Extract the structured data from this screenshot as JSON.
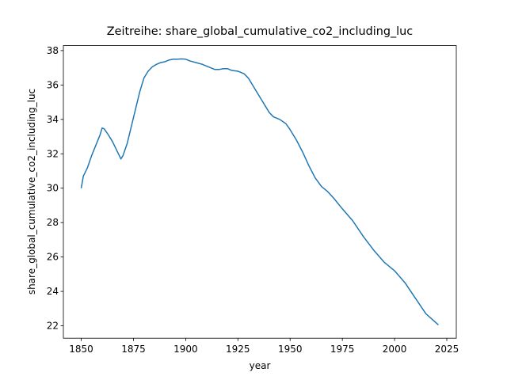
{
  "chart_data": {
    "type": "line",
    "title": "Zeitreihe: share_global_cumulative_co2_including_luc",
    "x_label": "year",
    "y_label": "share_global_cumulative_co2_including_luc",
    "x": [
      1850,
      1851,
      1853,
      1855,
      1857,
      1859,
      1860,
      1861,
      1863,
      1865,
      1867,
      1869,
      1870,
      1872,
      1874,
      1876,
      1878,
      1880,
      1882,
      1884,
      1886,
      1888,
      1890,
      1892,
      1894,
      1896,
      1898,
      1900,
      1902,
      1905,
      1908,
      1911,
      1914,
      1916,
      1918,
      1920,
      1922,
      1925,
      1928,
      1930,
      1932,
      1935,
      1938,
      1940,
      1942,
      1945,
      1948,
      1950,
      1953,
      1956,
      1959,
      1962,
      1965,
      1968,
      1971,
      1975,
      1980,
      1985,
      1990,
      1995,
      2000,
      2005,
      2010,
      2015,
      2021
    ],
    "series": [
      {
        "name": "share_global_cumulative_co2_including_luc",
        "color": "#1f77b4",
        "values": [
          30.0,
          30.7,
          31.2,
          31.9,
          32.5,
          33.1,
          33.5,
          33.45,
          33.1,
          32.7,
          32.2,
          31.7,
          31.9,
          32.6,
          33.6,
          34.6,
          35.6,
          36.4,
          36.8,
          37.05,
          37.2,
          37.3,
          37.35,
          37.45,
          37.5,
          37.5,
          37.52,
          37.5,
          37.4,
          37.3,
          37.2,
          37.05,
          36.9,
          36.9,
          36.95,
          36.95,
          36.85,
          36.8,
          36.65,
          36.4,
          36.0,
          35.4,
          34.8,
          34.4,
          34.15,
          34.0,
          33.75,
          33.4,
          32.8,
          32.1,
          31.3,
          30.6,
          30.1,
          29.8,
          29.4,
          28.8,
          28.1,
          27.2,
          26.4,
          25.7,
          25.2,
          24.5,
          23.6,
          22.7,
          22.05
        ]
      }
    ],
    "xlim": [
      1841.45,
      2029.55
    ],
    "ylim": [
      21.28,
      38.29
    ],
    "xticks": [
      1850,
      1875,
      1900,
      1925,
      1950,
      1975,
      2000,
      2025
    ],
    "yticks": [
      22,
      24,
      26,
      28,
      30,
      32,
      34,
      36,
      38
    ]
  }
}
